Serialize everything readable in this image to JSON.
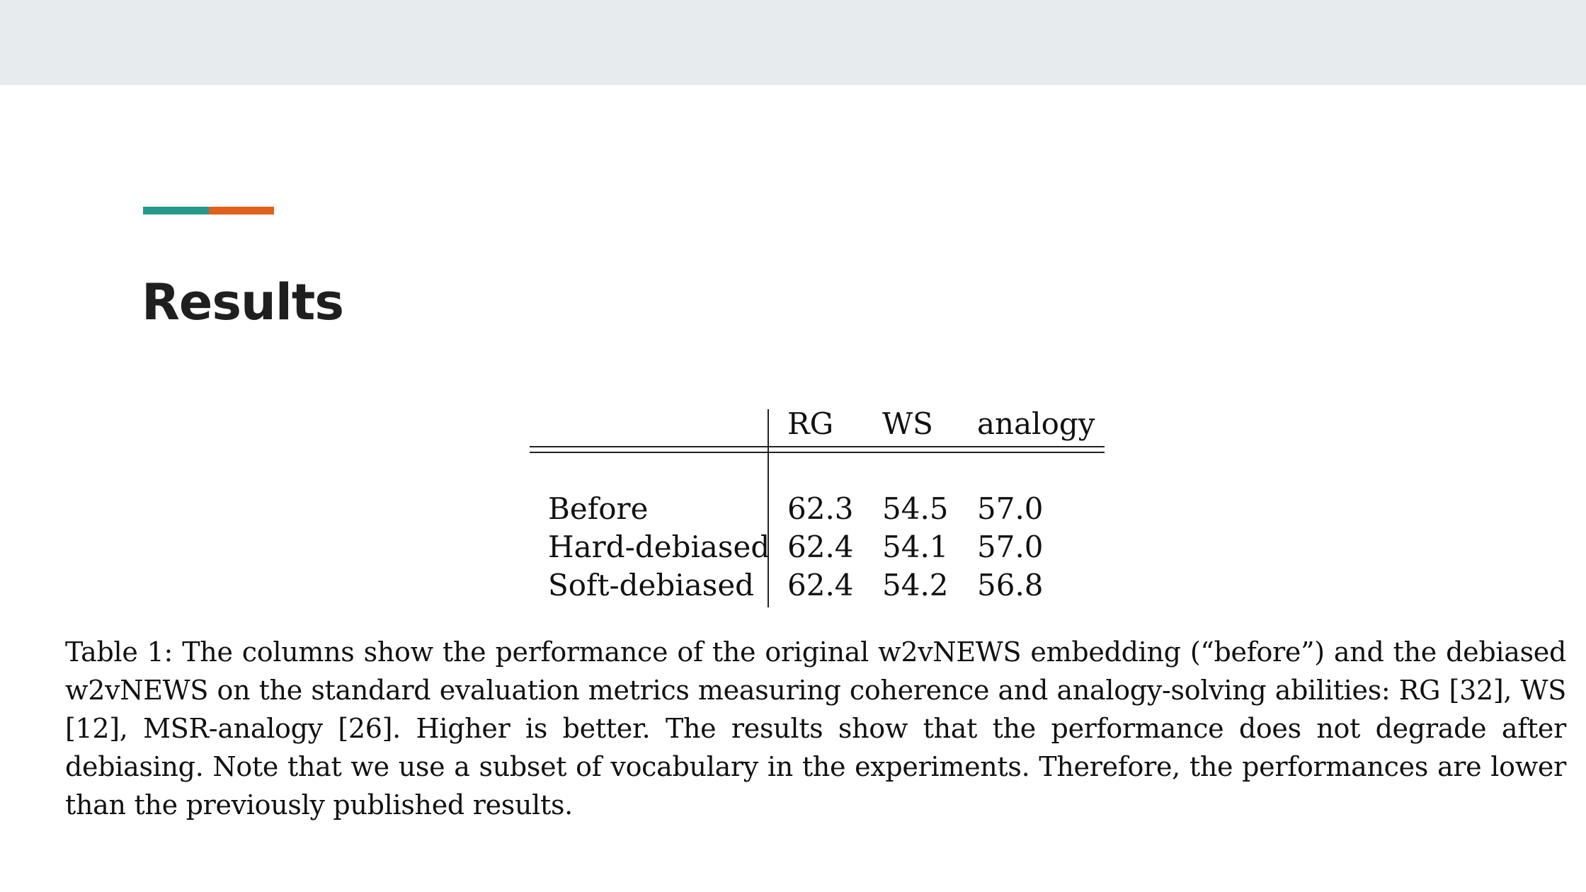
{
  "colors": {
    "top_band": "#e8ebed",
    "background": "#ffffff",
    "accent_teal": "#26998c",
    "accent_orange": "#e0601c",
    "title": "#1f1f1f"
  },
  "slide": {
    "title": "Results",
    "table": {
      "headers": [
        "RG",
        "WS",
        "analogy"
      ],
      "rows": [
        {
          "label": "Before",
          "values": [
            "62.3",
            "54.5",
            "57.0"
          ]
        },
        {
          "label": "Hard-debiased",
          "values": [
            "62.4",
            "54.1",
            "57.0"
          ]
        },
        {
          "label": "Soft-debiased",
          "values": [
            "62.4",
            "54.2",
            "56.8"
          ]
        }
      ]
    },
    "caption": "Table 1: The columns show the performance of the original w2vNEWS embedding (“before”) and the debiased w2vNEWS on the standard evaluation metrics measuring coherence and analogy-solving abilities: RG [32], WS [12], MSR-analogy [26]. Higher is better. The results show that the performance does not degrade after debiasing. Note that we use a subset of vocabulary in the experiments. Therefore, the performances are lower than the previously published results."
  }
}
